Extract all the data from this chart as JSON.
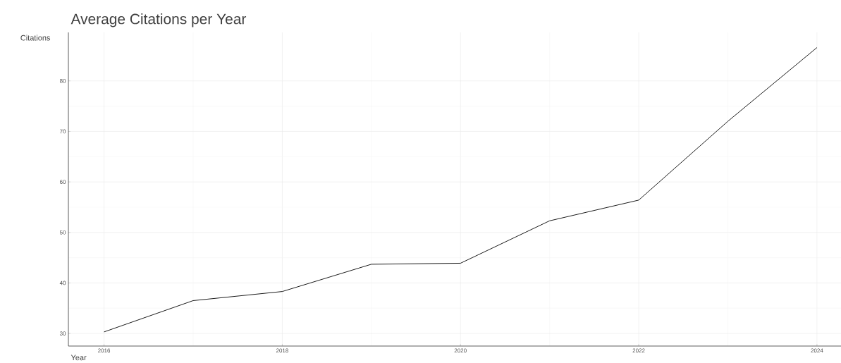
{
  "chart_data": {
    "type": "line",
    "title": "Average Citations per Year",
    "xlabel": "Year",
    "ylabel": "Citations",
    "x": [
      2016,
      2017,
      2018,
      2019,
      2020,
      2021,
      2022,
      2023,
      2024
    ],
    "series": [
      {
        "color": "#000000",
        "values": [
          30.3,
          36.5,
          38.3,
          43.7,
          43.9,
          52.3,
          56.4,
          72.0,
          86.6
        ]
      }
    ],
    "xlim": [
      2015.6,
      2024.27
    ],
    "ylim": [
      27.5,
      89.6
    ],
    "xticks": [
      2016,
      2018,
      2020,
      2022,
      2024
    ],
    "yticks": [
      30,
      40,
      50,
      60,
      70,
      80
    ],
    "grid": true,
    "marker": "none",
    "line_style": "solid"
  }
}
